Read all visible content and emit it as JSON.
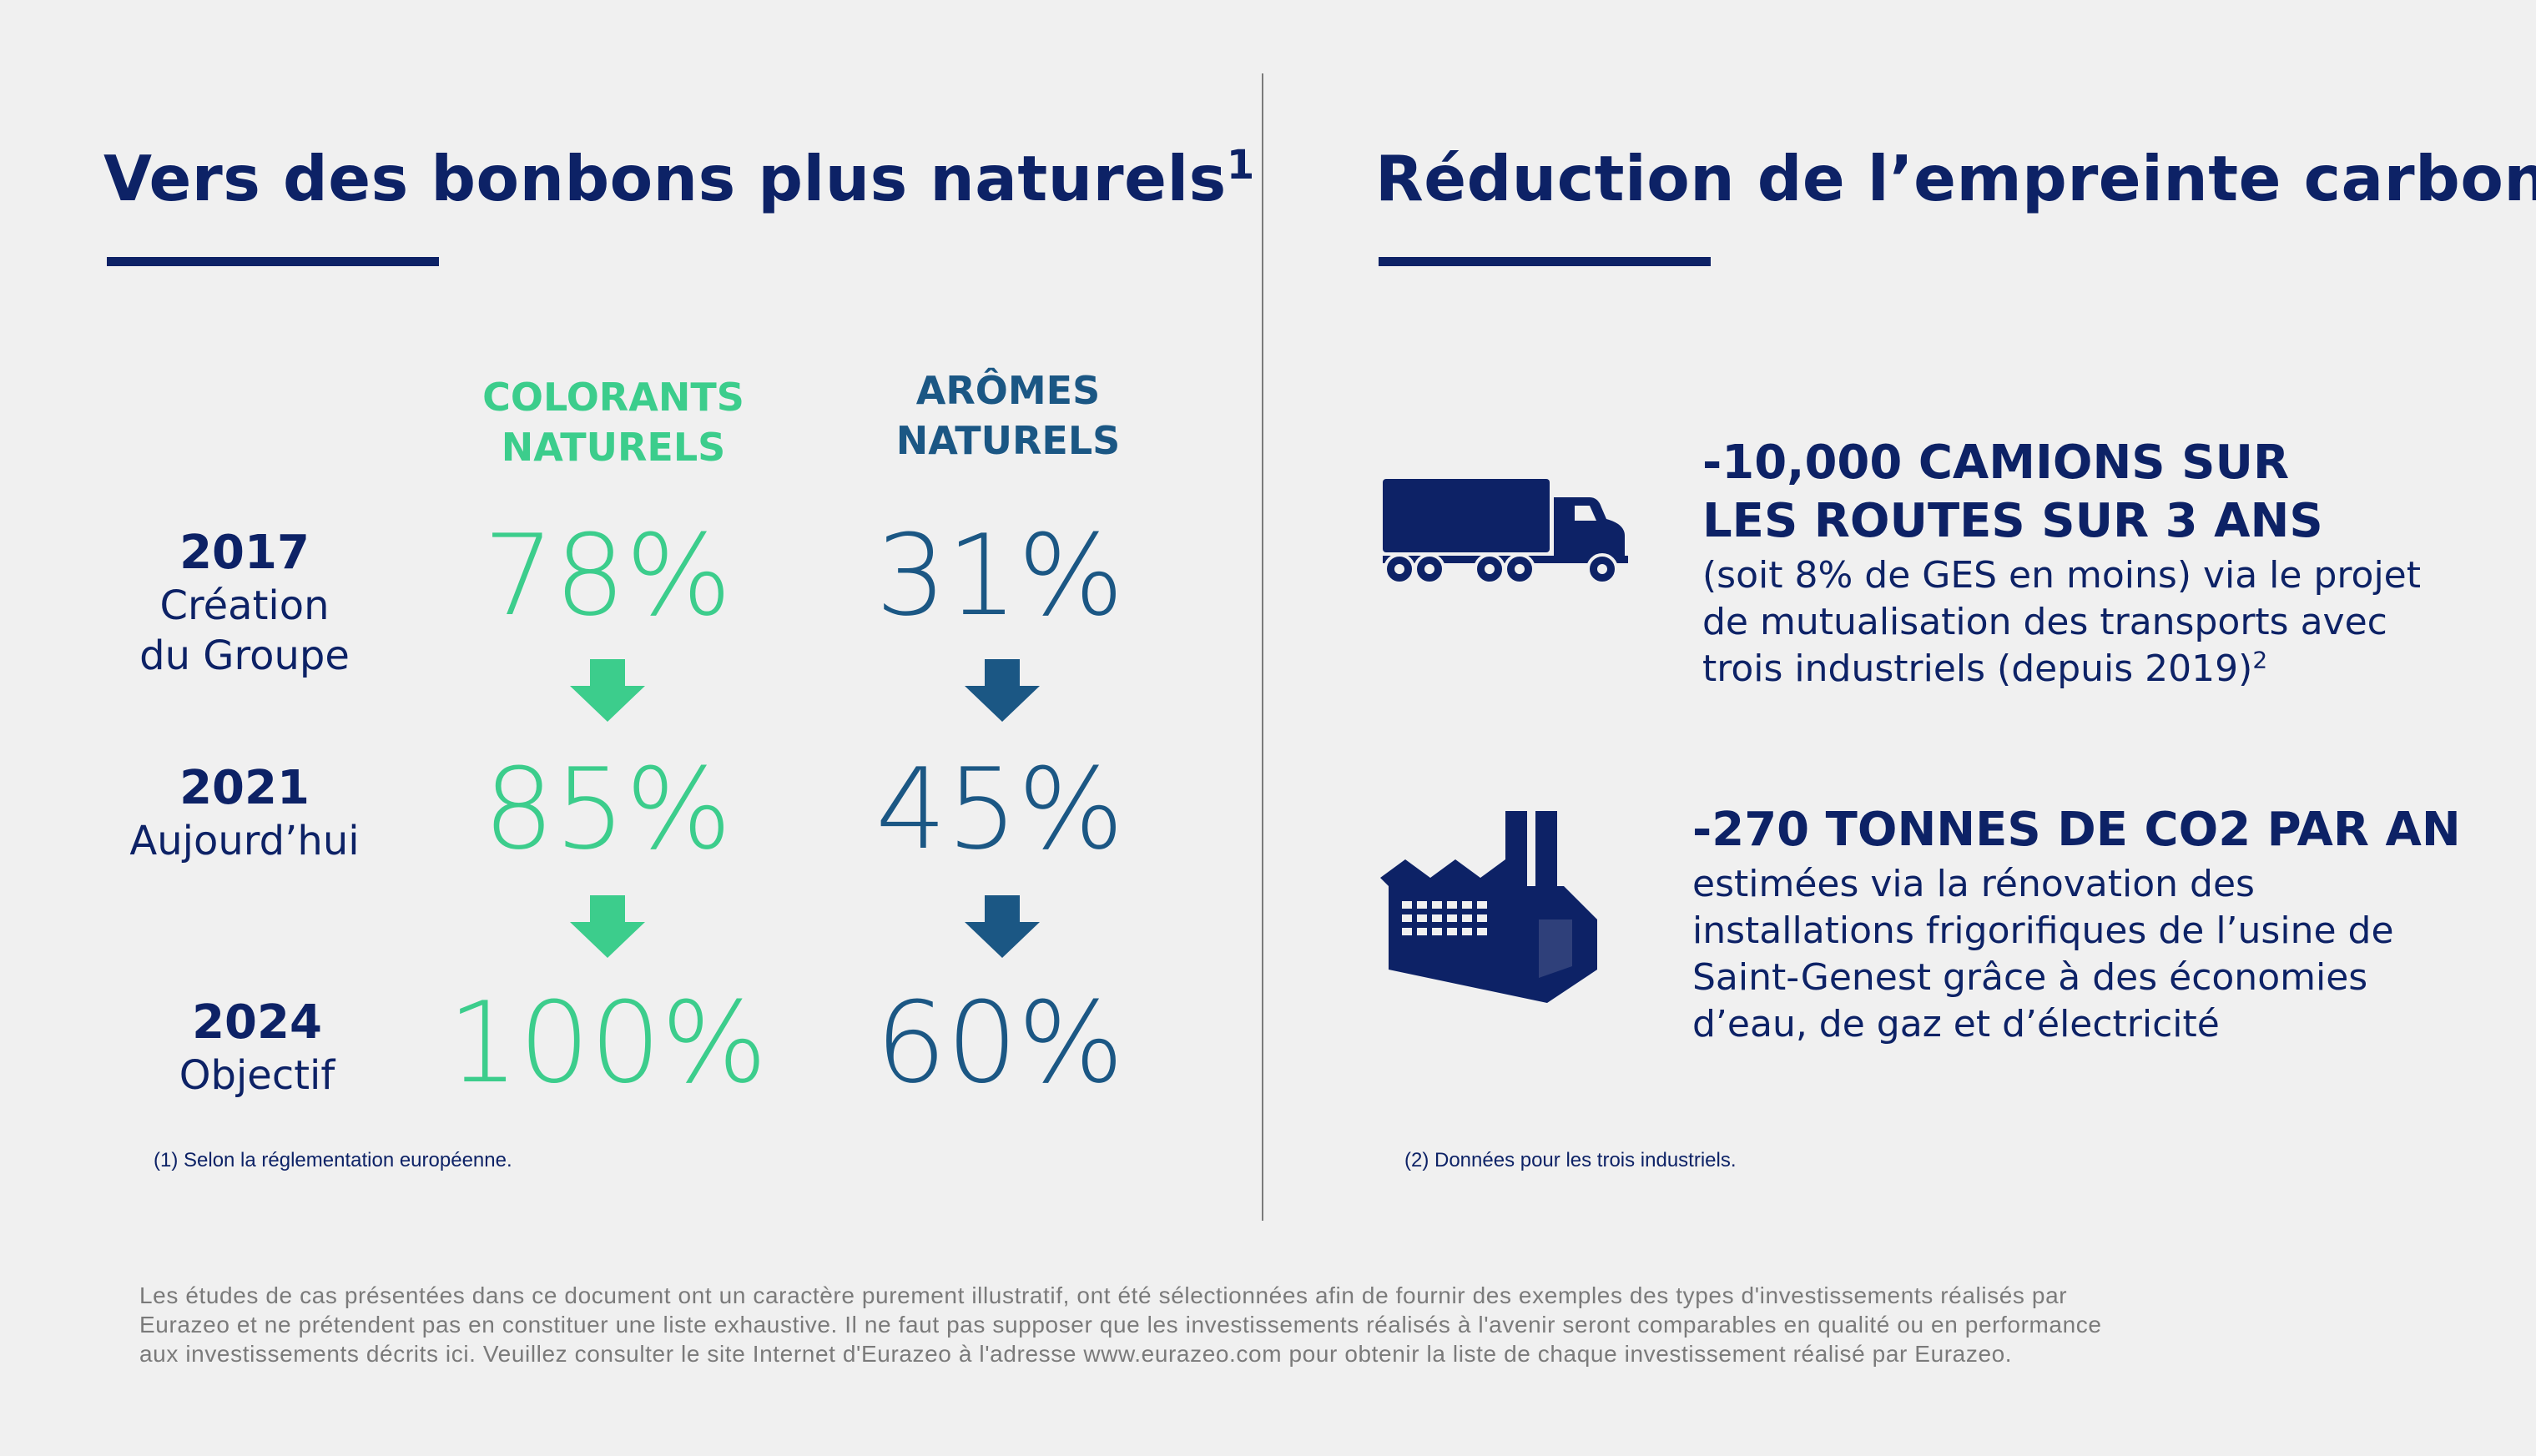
{
  "left": {
    "title": "Vers des bonbons plus naturels",
    "title_sup": "1",
    "columns": [
      {
        "line1": "COLORANTS",
        "line2": "NATURELS",
        "color": "#3ccd8c"
      },
      {
        "line1": "ARÔMES",
        "line2": "NATURELS",
        "color": "#1b5784"
      }
    ],
    "rows": [
      {
        "year": "2017",
        "sub1": "Création",
        "sub2": "du Groupe",
        "colorants": "78%",
        "aromes": "31%"
      },
      {
        "year": "2021",
        "sub1": "Aujourd’hui",
        "sub2": "",
        "colorants": "85%",
        "aromes": "45%"
      },
      {
        "year": "2024",
        "sub1": "Objectif",
        "sub2": "",
        "colorants": "100%",
        "aromes": "60%"
      }
    ],
    "footnote": "(1) Selon la réglementation européenne."
  },
  "right": {
    "title": "Réduction de l’empreinte carbone",
    "stats": [
      {
        "icon": "truck-icon",
        "title_lines": [
          "-10,000 CAMIONS SUR",
          "LES ROUTES SUR 3 ANS"
        ],
        "body_lines": [
          "(soit 8% de GES en moins) via le projet",
          "de mutualisation des transports avec",
          "trois industriels (depuis 2019)"
        ],
        "body_sup": "2"
      },
      {
        "icon": "factory-icon",
        "title_lines": [
          "-270 TONNES DE CO2 PAR AN"
        ],
        "body_lines": [
          "estimées via la rénovation des",
          "installations frigorifiques de l’usine de",
          "Saint-Genest grâce à des économies",
          "d’eau, de gaz et d’électricité"
        ]
      }
    ],
    "footnote": "(2) Données pour les trois industriels."
  },
  "disclaimer": [
    "Les études de cas présentées dans ce document ont un caractère purement illustratif, ont été sélectionnées afin de fournir des exemples des types d'investissements réalisés par",
    "Eurazeo et ne prétendent pas en constituer une liste exhaustive.  Il ne faut pas supposer que les investissements réalisés à l'avenir seront comparables en qualité ou en performance",
    "aux investissements décrits ici.  Veuillez consulter le site Internet d'Eurazeo à l'adresse www.eurazeo.com pour obtenir la liste de chaque investissement réalisé par Eurazeo."
  ],
  "colors": {
    "navy": "#0d2266",
    "green": "#3ccd8c",
    "steel_blue": "#1b5784",
    "background": "#f0f0f0"
  }
}
